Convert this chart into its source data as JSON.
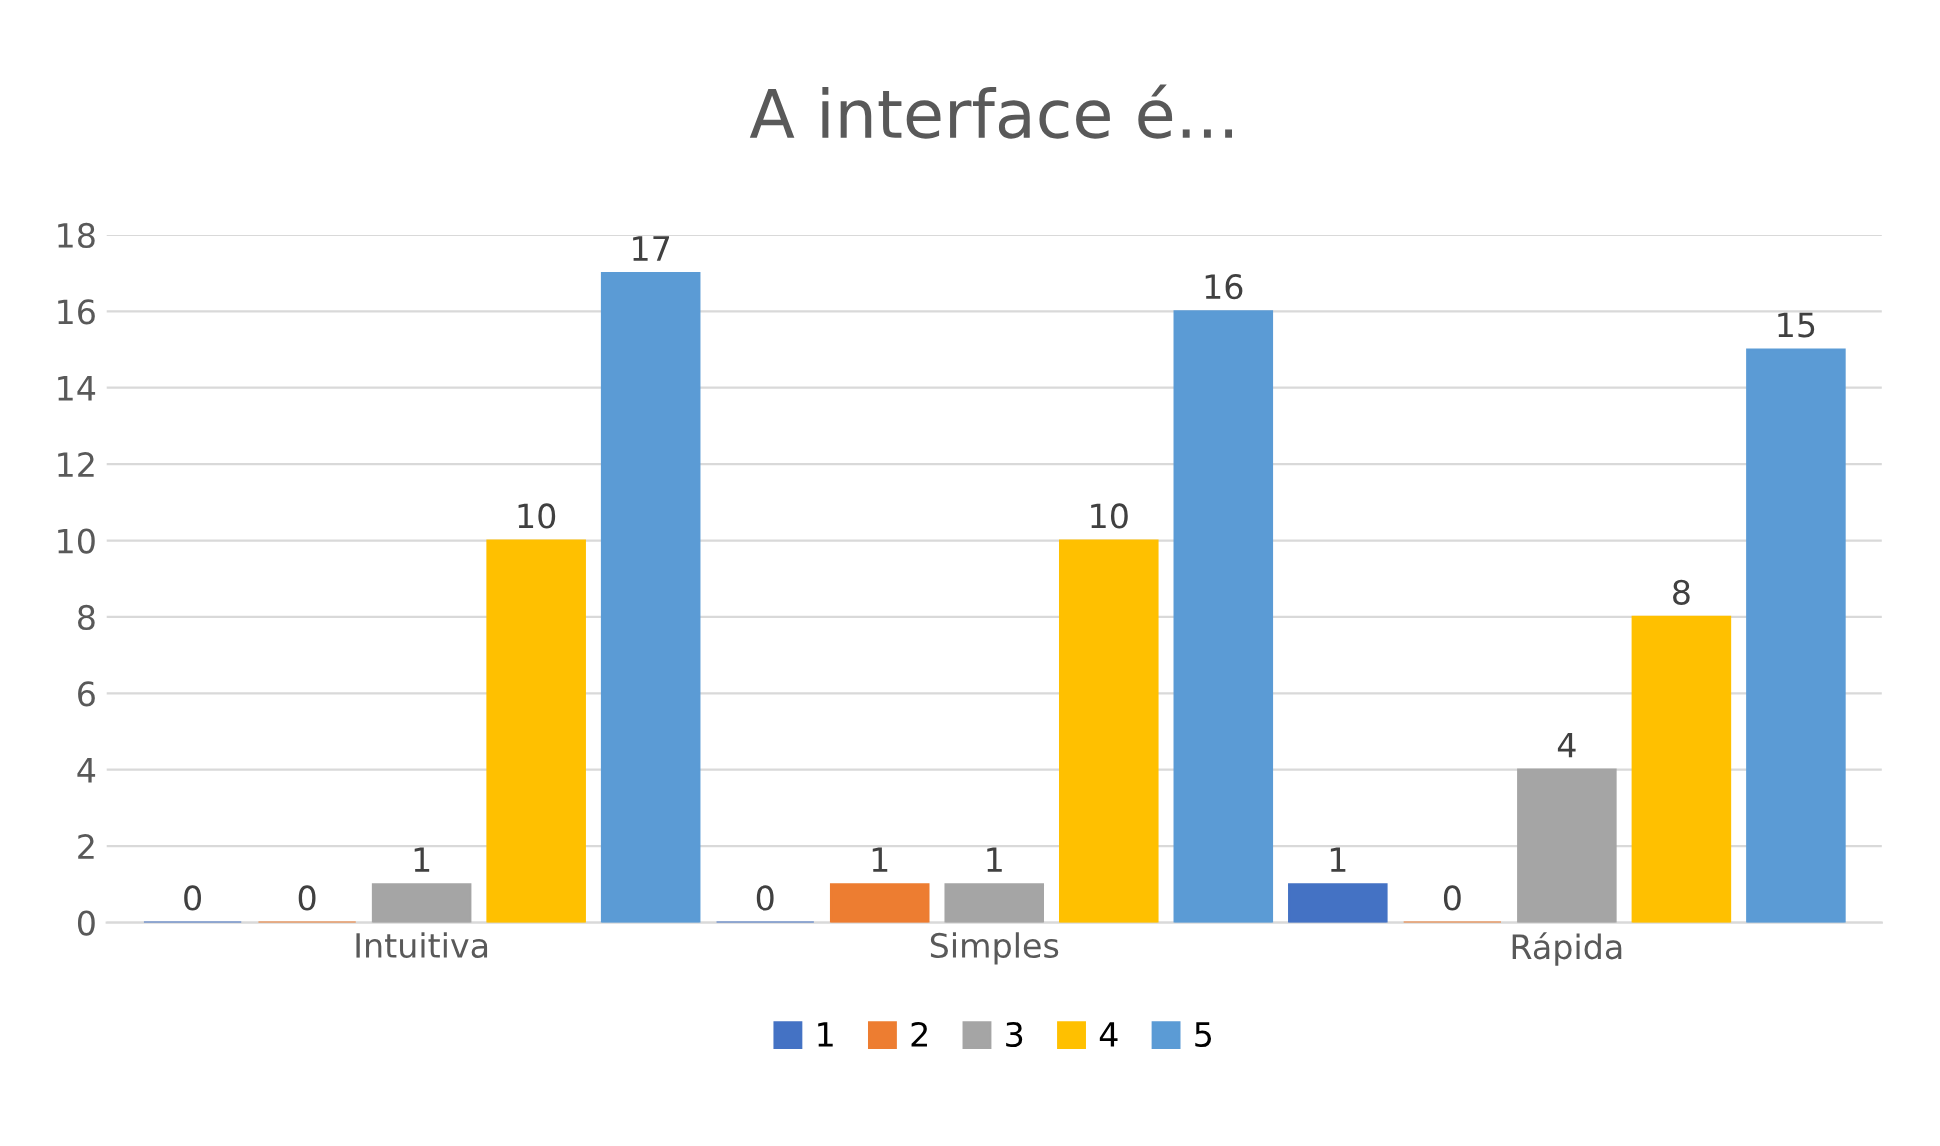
{
  "chart_data": {
    "type": "bar",
    "title": "A interface é...",
    "categories": [
      "Intuitiva",
      "Simples",
      "Rápida"
    ],
    "series": [
      {
        "name": "1",
        "color": "#4472c4",
        "values": [
          0,
          0,
          1
        ]
      },
      {
        "name": "2",
        "color": "#ed7d31",
        "values": [
          0,
          1,
          0
        ]
      },
      {
        "name": "3",
        "color": "#a5a5a5",
        "values": [
          1,
          1,
          4
        ]
      },
      {
        "name": "4",
        "color": "#ffc000",
        "values": [
          10,
          10,
          8
        ]
      },
      {
        "name": "5",
        "color": "#5b9bd5",
        "values": [
          17,
          16,
          15
        ]
      }
    ],
    "ylim": [
      0,
      18
    ],
    "yticks": [
      0,
      2,
      4,
      6,
      8,
      10,
      12,
      14,
      16,
      18
    ],
    "grid": "y",
    "legend": "bottom",
    "data_labels": true
  }
}
